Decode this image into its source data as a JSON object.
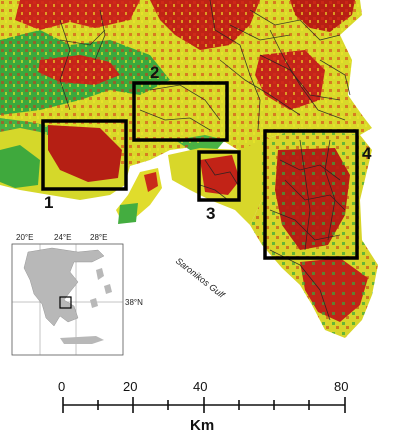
{
  "map": {
    "gulf_label": "Saronikos Gulf",
    "study_areas": [
      {
        "label": "1"
      },
      {
        "label": "2"
      },
      {
        "label": "3"
      },
      {
        "label": "4"
      }
    ]
  },
  "inset": {
    "lon_labels": [
      "20°E",
      "24°E",
      "28°E"
    ],
    "lat_label": "38°N"
  },
  "scale_bar": {
    "tick_labels": [
      "0",
      "20",
      "40",
      "80"
    ],
    "unit": "Km"
  },
  "colors": {
    "low_risk": "#2e9e3a",
    "mid_risk": "#e6e31c",
    "high_risk": "#d42a14",
    "very_high_risk": "#9b1e12",
    "box_outline": "#000000"
  }
}
